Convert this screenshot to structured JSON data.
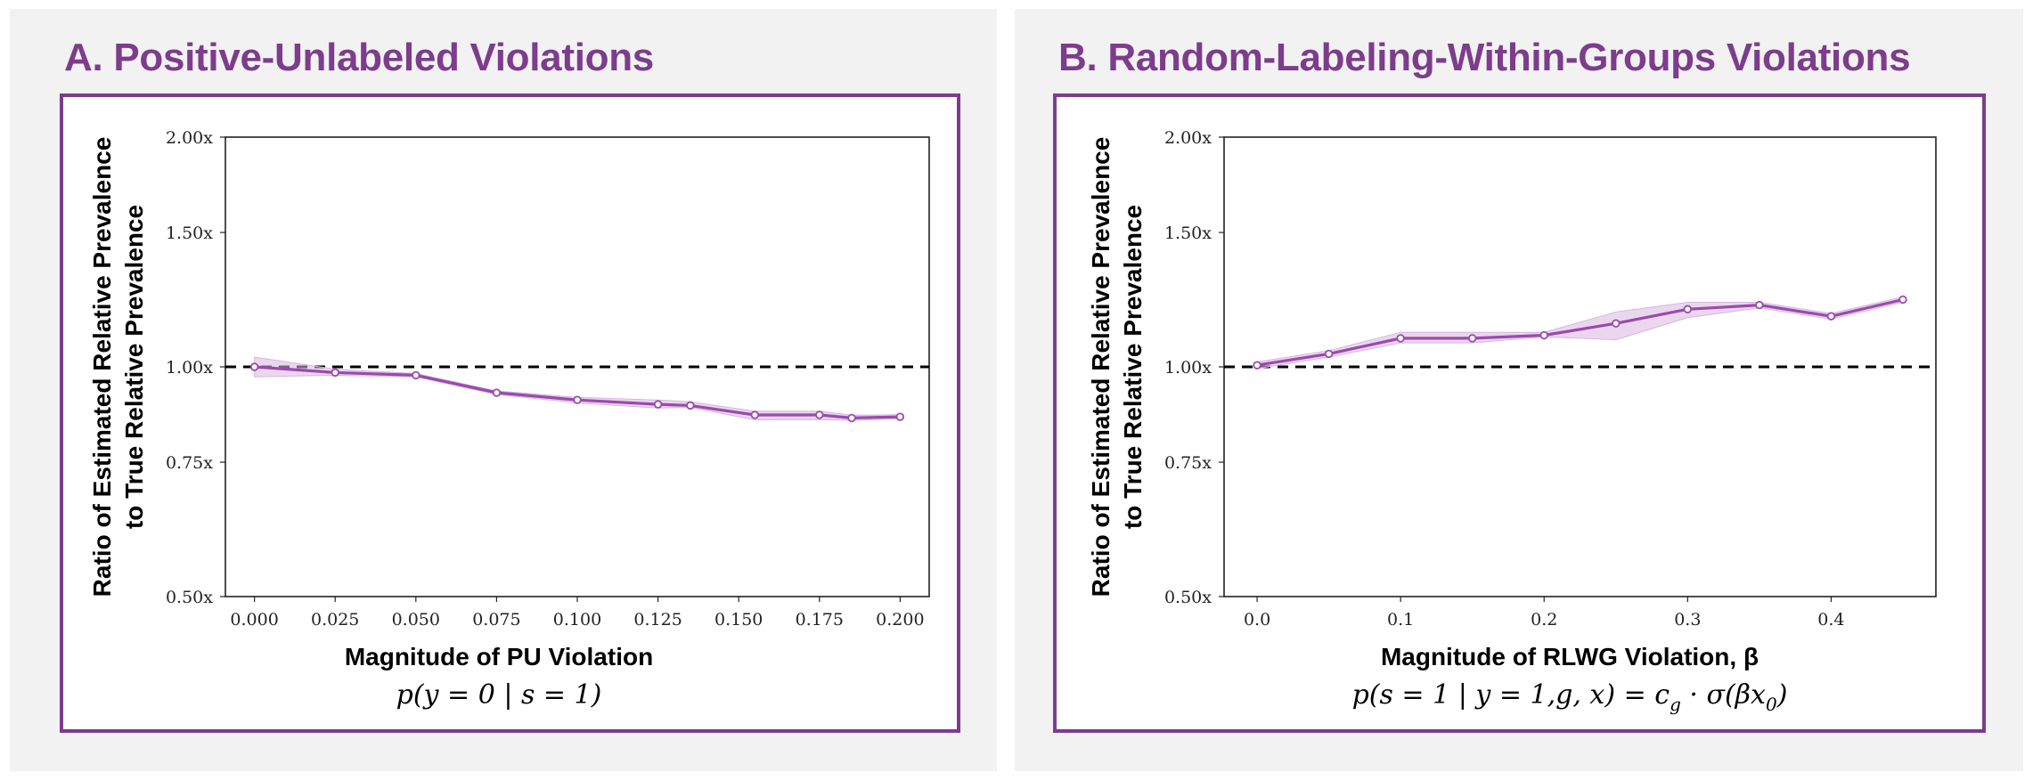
{
  "panels": [
    {
      "title": "A. Positive-Unlabeled Violations",
      "accent_color": "#7d3c8c"
    },
    {
      "title": "B. Random-Labeling-Within-Groups Violations",
      "accent_color": "#7d3c8c"
    }
  ],
  "chart_data": [
    {
      "type": "line",
      "title": "A. Positive-Unlabeled Violations",
      "xlabel": "Magnitude of PU Violation",
      "xlabel_formula": "p(y = 0 | s = 1)",
      "ylabel_line1": "Ratio of Estimated Relative Prevalence",
      "ylabel_line2": "to True Relative Prevalence",
      "y_scale": "log",
      "ylim": [
        0.5,
        2.0
      ],
      "yticks": [
        0.5,
        0.75,
        1.0,
        1.5,
        2.0
      ],
      "ytick_labels": [
        "0.50x",
        "0.75x",
        "1.00x",
        "1.50x",
        "2.00x"
      ],
      "xlim": [
        -0.009,
        0.209
      ],
      "xticks": [
        0.0,
        0.025,
        0.05,
        0.075,
        0.1,
        0.125,
        0.15,
        0.175,
        0.2
      ],
      "xtick_labels": [
        "0.000",
        "0.025",
        "0.050",
        "0.075",
        "0.100",
        "0.125",
        "0.150",
        "0.175",
        "0.200"
      ],
      "reference_line": 1.0,
      "x": [
        0.0,
        0.025,
        0.05,
        0.075,
        0.1,
        0.125,
        0.135,
        0.155,
        0.175,
        0.185,
        0.2
      ],
      "values": [
        1.0,
        0.983,
        0.975,
        0.925,
        0.905,
        0.893,
        0.89,
        0.865,
        0.865,
        0.857,
        0.86
      ],
      "ci_lower": [
        0.97,
        0.975,
        0.97,
        0.92,
        0.897,
        0.883,
        0.885,
        0.852,
        0.853,
        0.851,
        0.855
      ],
      "ci_upper": [
        1.03,
        0.993,
        0.98,
        0.93,
        0.912,
        0.905,
        0.9,
        0.875,
        0.875,
        0.864,
        0.866
      ],
      "line_color": "#9b4aae",
      "band_color": "#d8b6e0"
    },
    {
      "type": "line",
      "title": "B. Random-Labeling-Within-Groups Violations",
      "xlabel": "Magnitude of RLWG Violation, β",
      "xlabel_formula": "p(s = 1 | y = 1,g, x) = c_g · σ(βx_0)",
      "ylabel_line1": "Ratio of Estimated Relative Prevalence",
      "ylabel_line2": "to True Relative Prevalence",
      "y_scale": "log",
      "ylim": [
        0.5,
        2.0
      ],
      "yticks": [
        0.5,
        0.75,
        1.0,
        1.5,
        2.0
      ],
      "ytick_labels": [
        "0.50x",
        "0.75x",
        "1.00x",
        "1.50x",
        "2.00x"
      ],
      "xlim": [
        -0.023,
        0.473
      ],
      "xticks": [
        0.0,
        0.1,
        0.2,
        0.3,
        0.4
      ],
      "xtick_labels": [
        "0.0",
        "0.1",
        "0.2",
        "0.3",
        "0.4"
      ],
      "reference_line": 1.0,
      "x": [
        0.0,
        0.05,
        0.1,
        0.15,
        0.2,
        0.25,
        0.3,
        0.35,
        0.4,
        0.45
      ],
      "values": [
        1.005,
        1.04,
        1.09,
        1.09,
        1.1,
        1.14,
        1.19,
        1.205,
        1.165,
        1.225
      ],
      "ci_lower": [
        0.995,
        1.03,
        1.075,
        1.075,
        1.095,
        1.085,
        1.16,
        1.195,
        1.155,
        1.215
      ],
      "ci_upper": [
        1.015,
        1.05,
        1.11,
        1.11,
        1.11,
        1.18,
        1.215,
        1.215,
        1.175,
        1.235
      ],
      "line_color": "#9b4aae",
      "band_color": "#d8b6e0"
    }
  ]
}
